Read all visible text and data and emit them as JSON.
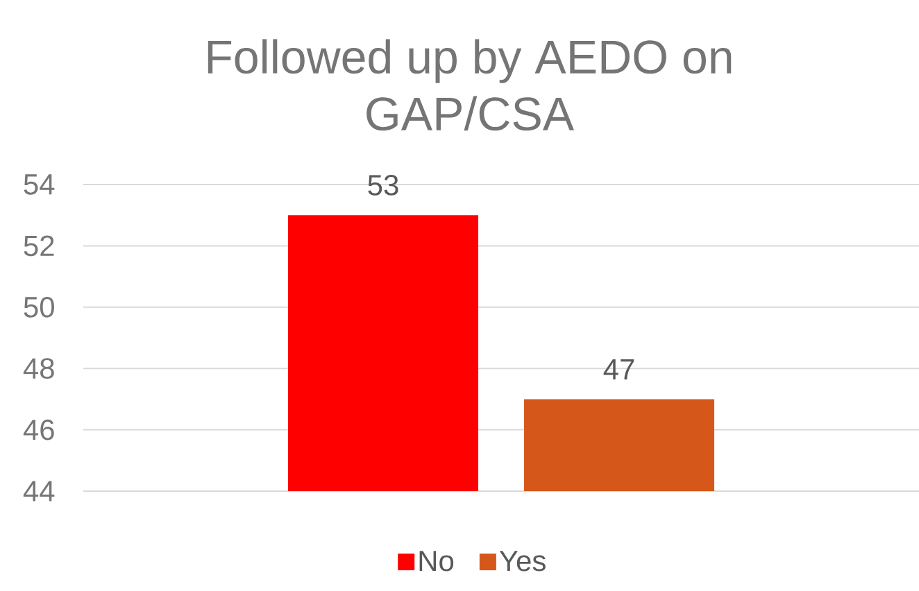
{
  "chart_data": {
    "type": "bar",
    "title": "Followed up by AEDO on GAP/CSA",
    "categories": [
      null
    ],
    "series": [
      {
        "name": "No",
        "color": "#ff0000",
        "values": [
          53
        ]
      },
      {
        "name": "Yes",
        "color": "#d5581a",
        "values": [
          47
        ]
      }
    ],
    "ylim": [
      44,
      54
    ],
    "yticks": [
      44,
      46,
      48,
      50,
      52,
      54
    ],
    "grid": "y",
    "legend": "bottom",
    "data_labels": true
  }
}
